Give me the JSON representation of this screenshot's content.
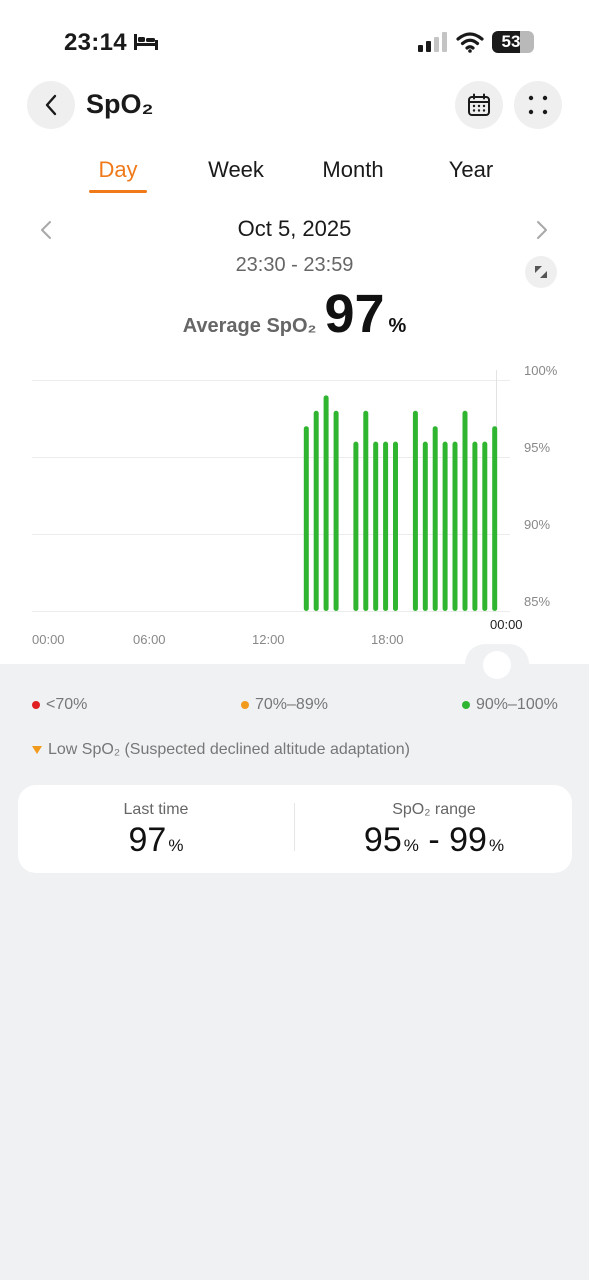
{
  "status_bar": {
    "time": "23:14",
    "battery": "53"
  },
  "header": {
    "title": "SpO₂"
  },
  "tabs": [
    {
      "label": "Day",
      "active": true
    },
    {
      "label": "Week",
      "active": false
    },
    {
      "label": "Month",
      "active": false
    },
    {
      "label": "Year",
      "active": false
    }
  ],
  "date_nav": {
    "date": "Oct 5, 2025",
    "time_range": "23:30 - 23:59"
  },
  "average": {
    "label": "Average SpO₂",
    "value": "97",
    "unit": "%"
  },
  "chart_data": {
    "type": "bar",
    "x_tick_labels": [
      "00:00",
      "06:00",
      "12:00",
      "18:00"
    ],
    "end_label": "00:00",
    "y_tick_labels": [
      "100%",
      "95%",
      "90%",
      "85%"
    ],
    "ylim": [
      85,
      100
    ],
    "grid": true,
    "bar_color": "#2fb52f",
    "series": [
      {
        "values": [
          {
            "x": "13:50",
            "y": 97
          },
          {
            "x": "14:20",
            "y": 98
          },
          {
            "x": "14:50",
            "y": 99
          },
          {
            "x": "15:20",
            "y": 98
          },
          {
            "x": "16:20",
            "y": 96
          },
          {
            "x": "16:50",
            "y": 98
          },
          {
            "x": "17:20",
            "y": 96
          },
          {
            "x": "17:50",
            "y": 96
          },
          {
            "x": "18:20",
            "y": 96
          },
          {
            "x": "19:20",
            "y": 98
          },
          {
            "x": "19:50",
            "y": 96
          },
          {
            "x": "20:20",
            "y": 97
          },
          {
            "x": "20:50",
            "y": 96
          },
          {
            "x": "21:20",
            "y": 96
          },
          {
            "x": "21:50",
            "y": 98
          },
          {
            "x": "22:20",
            "y": 96
          },
          {
            "x": "22:50",
            "y": 96
          },
          {
            "x": "23:20",
            "y": 97
          }
        ]
      }
    ]
  },
  "legend": [
    {
      "label": "<70%",
      "color": "#e02020"
    },
    {
      "label": "70%–89%",
      "color": "#f29a1c"
    },
    {
      "label": "90%–100%",
      "color": "#2fb52f"
    }
  ],
  "low_note": {
    "label": "Low SpO₂ (Suspected declined altitude adaptation)",
    "color": "#f29a1c"
  },
  "summary": {
    "last_time": {
      "label": "Last time",
      "value": "97",
      "unit": "%"
    },
    "range": {
      "label": "SpO₂ range",
      "low": "95",
      "high": "99",
      "unit": "%",
      "separator": "-"
    }
  },
  "icons": {
    "back": "chevron-left-icon",
    "calendar": "calendar-icon",
    "more": "grid-dots-icon",
    "prev": "chevron-left-icon",
    "next": "chevron-right-icon",
    "expand": "expand-icon",
    "bed": "bed-icon",
    "signal": "signal-icon",
    "wifi": "wifi-icon"
  },
  "colors": {
    "accent": "#f07a1a"
  }
}
